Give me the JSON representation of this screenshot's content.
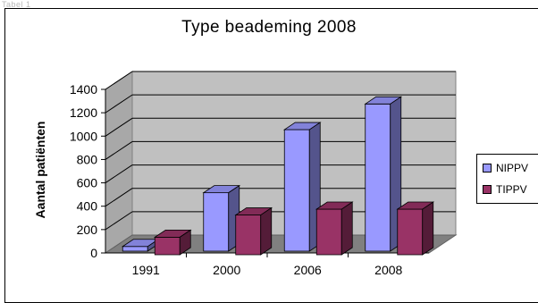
{
  "header": {
    "caption": "Tabel 1"
  },
  "chart_data": {
    "type": "bar",
    "title": "Type beademing 2008",
    "xlabel": "",
    "ylabel": "Aantal patiënten",
    "categories": [
      "1991",
      "2000",
      "2006",
      "2008"
    ],
    "series": [
      {
        "name": "NIPPV",
        "values": [
          40,
          500,
          1040,
          1260
        ],
        "color": "#9999ff"
      },
      {
        "name": "TIPPV",
        "values": [
          150,
          340,
          390,
          390
        ],
        "color": "#993366"
      }
    ],
    "ylim": [
      0,
      1400
    ],
    "yticks": [
      0,
      200,
      400,
      600,
      800,
      1000,
      1200,
      1400
    ],
    "grid": true,
    "three_d": true,
    "legend_position": "right"
  }
}
